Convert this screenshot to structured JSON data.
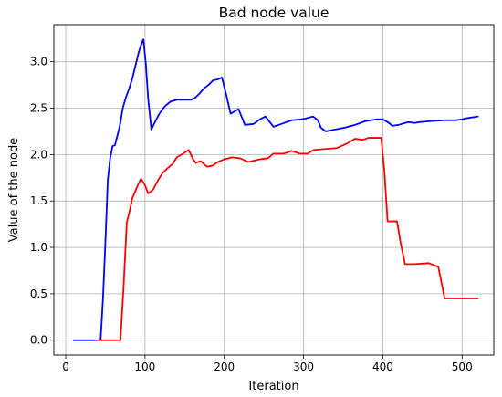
{
  "chart_data": {
    "type": "line",
    "title": "Bad node value",
    "xlabel": "Iteration",
    "ylabel": "Value of the node",
    "xlim": [
      -15,
      540
    ],
    "ylim": [
      -0.16,
      3.4
    ],
    "xticks": [
      0,
      100,
      200,
      300,
      400,
      500
    ],
    "yticks": [
      0.0,
      0.5,
      1.0,
      1.5,
      2.0,
      2.5,
      3.0
    ],
    "xtick_labels": [
      "0",
      "100",
      "200",
      "300",
      "400",
      "500"
    ],
    "ytick_labels": [
      "0.0",
      "0.5",
      "1.0",
      "1.5",
      "2.0",
      "2.5",
      "3.0"
    ],
    "grid": true,
    "series": [
      {
        "color": "#0000ff",
        "points": [
          [
            10,
            0.0
          ],
          [
            44,
            0.0
          ],
          [
            47,
            0.45
          ],
          [
            50,
            1.05
          ],
          [
            53,
            1.72
          ],
          [
            56,
            1.96
          ],
          [
            59,
            2.09
          ],
          [
            62,
            2.1
          ],
          [
            65,
            2.2
          ],
          [
            68,
            2.3
          ],
          [
            72,
            2.5
          ],
          [
            76,
            2.62
          ],
          [
            80,
            2.71
          ],
          [
            84,
            2.82
          ],
          [
            88,
            2.96
          ],
          [
            92,
            3.1
          ],
          [
            95,
            3.18
          ],
          [
            98,
            3.24
          ],
          [
            101,
            2.98
          ],
          [
            104,
            2.6
          ],
          [
            108,
            2.27
          ],
          [
            112,
            2.34
          ],
          [
            118,
            2.44
          ],
          [
            125,
            2.52
          ],
          [
            132,
            2.57
          ],
          [
            140,
            2.59
          ],
          [
            150,
            2.59
          ],
          [
            158,
            2.59
          ],
          [
            163,
            2.61
          ],
          [
            168,
            2.65
          ],
          [
            174,
            2.71
          ],
          [
            180,
            2.75
          ],
          [
            186,
            2.8
          ],
          [
            192,
            2.81
          ],
          [
            197,
            2.83
          ],
          [
            202,
            2.66
          ],
          [
            208,
            2.44
          ],
          [
            218,
            2.49
          ],
          [
            226,
            2.32
          ],
          [
            237,
            2.33
          ],
          [
            245,
            2.38
          ],
          [
            252,
            2.41
          ],
          [
            262,
            2.3
          ],
          [
            272,
            2.33
          ],
          [
            285,
            2.37
          ],
          [
            297,
            2.38
          ],
          [
            303,
            2.39
          ],
          [
            312,
            2.41
          ],
          [
            318,
            2.37
          ],
          [
            322,
            2.29
          ],
          [
            328,
            2.25
          ],
          [
            340,
            2.27
          ],
          [
            352,
            2.29
          ],
          [
            365,
            2.32
          ],
          [
            378,
            2.36
          ],
          [
            392,
            2.38
          ],
          [
            400,
            2.38
          ],
          [
            408,
            2.34
          ],
          [
            412,
            2.31
          ],
          [
            420,
            2.32
          ],
          [
            432,
            2.35
          ],
          [
            440,
            2.34
          ],
          [
            447,
            2.35
          ],
          [
            460,
            2.36
          ],
          [
            478,
            2.37
          ],
          [
            492,
            2.37
          ],
          [
            500,
            2.38
          ],
          [
            505,
            2.39
          ],
          [
            520,
            2.41
          ]
        ]
      },
      {
        "color": "#ff0000",
        "points": [
          [
            40,
            0.0
          ],
          [
            69,
            0.0
          ],
          [
            73,
            0.58
          ],
          [
            77,
            1.27
          ],
          [
            80,
            1.37
          ],
          [
            84,
            1.53
          ],
          [
            88,
            1.61
          ],
          [
            92,
            1.69
          ],
          [
            95,
            1.74
          ],
          [
            100,
            1.67
          ],
          [
            104,
            1.58
          ],
          [
            110,
            1.62
          ],
          [
            117,
            1.73
          ],
          [
            122,
            1.8
          ],
          [
            128,
            1.85
          ],
          [
            135,
            1.9
          ],
          [
            140,
            1.97
          ],
          [
            148,
            2.01
          ],
          [
            155,
            2.05
          ],
          [
            160,
            1.96
          ],
          [
            164,
            1.91
          ],
          [
            170,
            1.93
          ],
          [
            178,
            1.87
          ],
          [
            185,
            1.88
          ],
          [
            192,
            1.92
          ],
          [
            200,
            1.95
          ],
          [
            210,
            1.97
          ],
          [
            220,
            1.96
          ],
          [
            230,
            1.92
          ],
          [
            245,
            1.95
          ],
          [
            255,
            1.96
          ],
          [
            262,
            2.01
          ],
          [
            275,
            2.01
          ],
          [
            285,
            2.04
          ],
          [
            295,
            2.01
          ],
          [
            305,
            2.01
          ],
          [
            313,
            2.05
          ],
          [
            327,
            2.06
          ],
          [
            342,
            2.07
          ],
          [
            355,
            2.12
          ],
          [
            365,
            2.17
          ],
          [
            375,
            2.16
          ],
          [
            382,
            2.18
          ],
          [
            392,
            2.18
          ],
          [
            398,
            2.18
          ],
          [
            402,
            1.82
          ],
          [
            406,
            1.28
          ],
          [
            418,
            1.28
          ],
          [
            422,
            1.07
          ],
          [
            428,
            0.82
          ],
          [
            440,
            0.82
          ],
          [
            458,
            0.83
          ],
          [
            470,
            0.79
          ],
          [
            478,
            0.45
          ],
          [
            520,
            0.45
          ]
        ]
      }
    ]
  }
}
